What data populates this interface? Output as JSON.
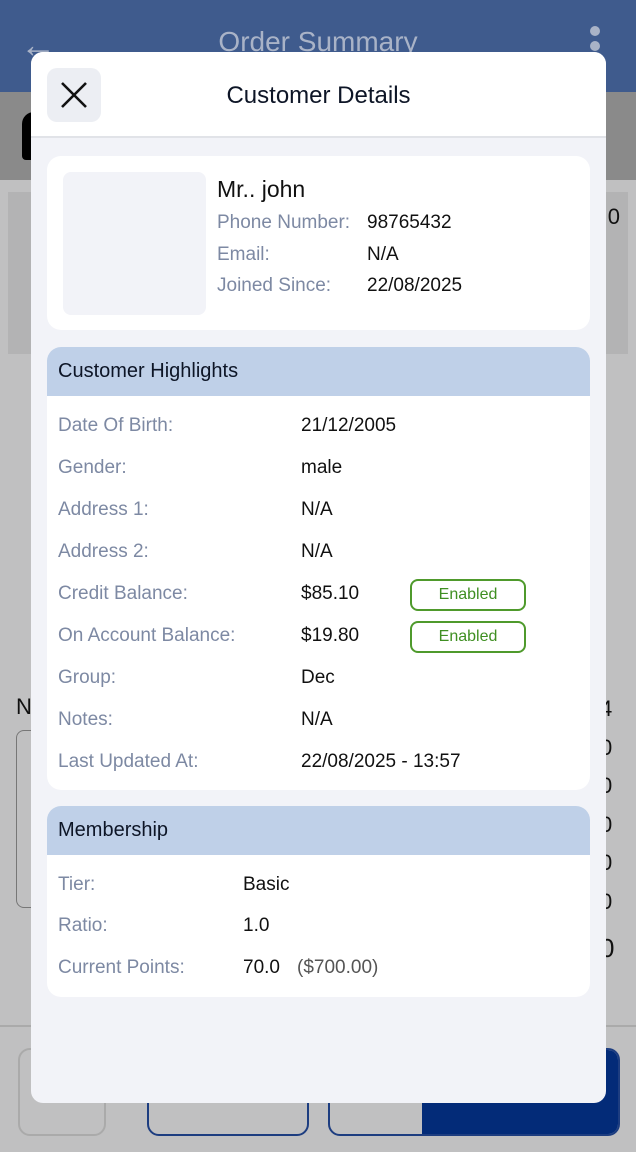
{
  "background": {
    "title": "Order Summary",
    "fragment_n": "N",
    "right_digits": [
      "4",
      "0",
      "0",
      "0",
      "0",
      "0",
      "0"
    ],
    "right_total": "0",
    "top_digit": "0"
  },
  "modal": {
    "title": "Customer Details",
    "profile": {
      "name": "Mr.. john",
      "rows": [
        {
          "label": "Phone Number:",
          "value": "98765432"
        },
        {
          "label": "Email:",
          "value": "N/A"
        },
        {
          "label": "Joined Since:",
          "value": "22/08/2025"
        }
      ]
    },
    "highlights": {
      "title": "Customer Highlights",
      "rows": [
        {
          "label": "Date Of Birth:",
          "value": "21/12/2005"
        },
        {
          "label": "Gender:",
          "value": "male"
        },
        {
          "label": "Address 1:",
          "value": "N/A"
        },
        {
          "label": "Address 2:",
          "value": "N/A"
        },
        {
          "label": "Credit Balance:",
          "value": "$85.10",
          "badge": "Enabled"
        },
        {
          "label": "On Account Balance:",
          "value": "$19.80",
          "badge": "Enabled"
        },
        {
          "label": "Group:",
          "value": "Dec"
        },
        {
          "label": "Notes:",
          "value": "N/A"
        },
        {
          "label": "Last Updated At:",
          "value": "22/08/2025 - 13:57"
        }
      ]
    },
    "membership": {
      "title": "Membership",
      "rows": [
        {
          "label": "Tier:",
          "value": "Basic"
        },
        {
          "label": "Ratio:",
          "value": "1.0"
        },
        {
          "label": "Current Points:",
          "value": "70.0",
          "extra": "($700.00)"
        }
      ]
    }
  },
  "colors": {
    "header": "#3f5b8d",
    "section_header": "#bfd0e8",
    "badge_green": "#4f9a2c",
    "primary": "#032b78"
  }
}
